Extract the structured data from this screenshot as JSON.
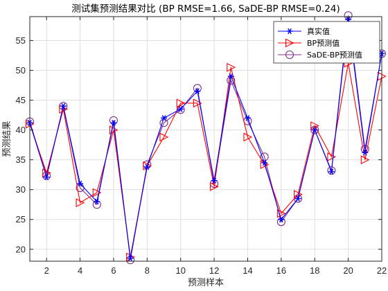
{
  "chart_data": {
    "type": "line",
    "title": "测试集预测结果对比 (BP RMSE=1.66, SaDE-BP RMSE=0.24)",
    "xlabel": "预测样本",
    "ylabel": "预测结果",
    "xlim": [
      1,
      22
    ],
    "ylim": [
      18,
      59
    ],
    "x_ticks": [
      2,
      4,
      6,
      8,
      10,
      12,
      14,
      16,
      18,
      20,
      22
    ],
    "y_ticks": [
      20,
      25,
      30,
      35,
      40,
      45,
      50,
      55
    ],
    "grid": true,
    "legend_position": "top-right",
    "x": [
      1,
      2,
      3,
      4,
      5,
      6,
      7,
      8,
      9,
      10,
      11,
      12,
      13,
      14,
      15,
      16,
      17,
      18,
      19,
      20,
      21,
      22
    ],
    "series": [
      {
        "name": "真实值",
        "color": "#0000ff",
        "marker": "asterisk",
        "values": [
          41.2,
          32.1,
          44.0,
          31.0,
          28.0,
          41.2,
          18.5,
          33.8,
          42.0,
          43.5,
          46.5,
          31.5,
          49.0,
          42.0,
          34.5,
          25.0,
          28.5,
          40.0,
          33.0,
          58.5,
          36.2,
          52.8
        ]
      },
      {
        "name": "BP预测值",
        "color": "#ff0000",
        "marker": "triangle-right",
        "values": [
          41.0,
          32.8,
          43.5,
          27.8,
          29.5,
          40.0,
          18.7,
          34.0,
          38.8,
          44.5,
          44.5,
          30.5,
          50.5,
          38.8,
          34.2,
          26.0,
          29.2,
          40.7,
          35.5,
          51.2,
          35.0,
          49.0
        ]
      },
      {
        "name": "SaDE-BP预测值",
        "color": "#7e2f8e",
        "marker": "circle",
        "values": [
          41.4,
          32.3,
          44.0,
          30.3,
          27.5,
          41.6,
          18.2,
          34.2,
          41.2,
          43.4,
          47.0,
          31.0,
          48.3,
          41.5,
          35.5,
          24.6,
          28.5,
          40.0,
          33.2,
          59.2,
          36.8,
          52.8
        ]
      }
    ]
  },
  "colors": {
    "axis": "#262626",
    "grid": "#dfdfdf",
    "background": "#ffffff"
  }
}
